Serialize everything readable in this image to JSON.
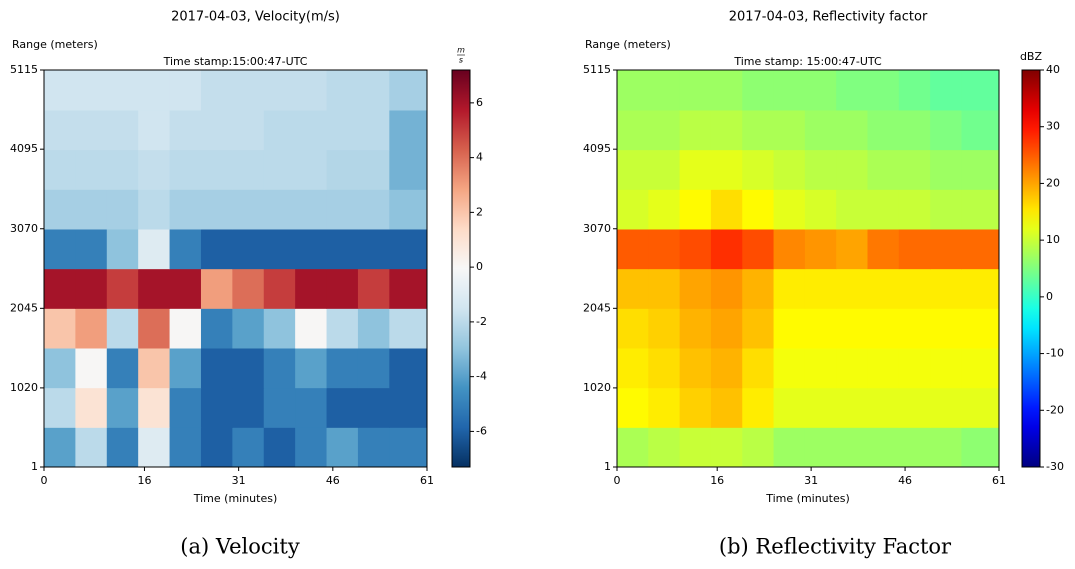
{
  "chart_data": [
    {
      "type": "heatmap",
      "title": "2017-04-03, Velocity(m/s)",
      "subtitle": "Time stamp:15:00:47-UTC",
      "y_label": "Range (meters)",
      "x_label": "Time (minutes)",
      "caption": "(a) Velocity",
      "colorbar_unit": {
        "numerator": "m",
        "denominator": "s"
      },
      "colormap": "RdBu_r",
      "xlim": [
        0,
        61
      ],
      "xticks": [
        0,
        16,
        31,
        46,
        61
      ],
      "ylim": [
        1,
        5115
      ],
      "yticks": [
        1,
        1020,
        2045,
        3070,
        4095,
        5115
      ],
      "clim": [
        -7.3,
        7.2
      ],
      "cticks": [
        -6,
        -4,
        -2,
        0,
        2,
        4,
        6
      ],
      "x_bins": [
        0,
        5,
        10,
        15,
        20,
        25,
        30,
        35,
        40,
        45,
        50,
        55,
        61
      ],
      "y_bins": [
        1,
        512,
        1023,
        1534,
        2045,
        2556,
        3067,
        3578,
        4089,
        4600,
        5115
      ],
      "z": [
        [
          -4,
          -2,
          -5,
          -1,
          -5,
          -6,
          -5,
          -6,
          -5,
          -4,
          -5,
          -5
        ],
        [
          -2,
          1,
          -4,
          1,
          -5,
          -6,
          -6,
          -5,
          -5,
          -6,
          -6,
          -6
        ],
        [
          -3,
          0,
          -5,
          2,
          -4,
          -6,
          -6,
          -5,
          -4,
          -5,
          -5,
          -6
        ],
        [
          2,
          3,
          -2,
          4,
          0,
          -5,
          -4,
          -3,
          0,
          -2,
          -3,
          -2
        ],
        [
          6,
          6,
          5,
          6,
          6,
          3,
          4,
          5,
          6,
          6,
          5,
          6
        ],
        [
          -5,
          -5,
          -3,
          -1,
          -5,
          -6,
          -6,
          -6,
          -6,
          -6,
          -6,
          -6
        ],
        [
          -2.5,
          -2.5,
          -2.5,
          -2,
          -2.5,
          -2.5,
          -2.5,
          -2.5,
          -2.5,
          -2.5,
          -2.5,
          -3
        ],
        [
          -2,
          -2,
          -2,
          -1.8,
          -2,
          -2,
          -2,
          -2,
          -2,
          -2.2,
          -2.2,
          -3.5
        ],
        [
          -1.8,
          -1.8,
          -1.8,
          -1.5,
          -1.8,
          -1.8,
          -1.8,
          -2,
          -2,
          -2,
          -2,
          -3.5
        ],
        [
          -1.5,
          -1.5,
          -1.5,
          -1.5,
          -1.5,
          -1.8,
          -1.8,
          -1.8,
          -1.8,
          -2,
          -2,
          -2.5
        ]
      ]
    },
    {
      "type": "heatmap",
      "title": "2017-04-03, Reflectivity factor",
      "subtitle": "Time stamp: 15:00:47-UTC",
      "y_label": "Range (meters)",
      "x_label": "Time (minutes)",
      "caption": "(b) Reflectivity Factor",
      "colorbar_label": "dBZ",
      "colormap": "jet",
      "xlim": [
        0,
        61
      ],
      "xticks": [
        0,
        16,
        31,
        46,
        61
      ],
      "ylim": [
        1,
        5115
      ],
      "yticks": [
        1,
        1020,
        2045,
        3070,
        4095,
        5115
      ],
      "clim": [
        -30,
        40
      ],
      "cticks": [
        -30,
        -20,
        -10,
        0,
        10,
        20,
        30,
        40
      ],
      "x_bins": [
        0,
        5,
        10,
        15,
        20,
        25,
        30,
        35,
        40,
        45,
        50,
        55,
        61
      ],
      "y_bins": [
        1,
        512,
        1023,
        1534,
        2045,
        2556,
        3067,
        3578,
        4089,
        4600,
        5115
      ],
      "z": [
        [
          8,
          9,
          10,
          10,
          9,
          7,
          7,
          7,
          7,
          7,
          7,
          6
        ],
        [
          14,
          15,
          17,
          18,
          15,
          12,
          12,
          12,
          12,
          12,
          12,
          12
        ],
        [
          15,
          16,
          18,
          19,
          16,
          13,
          13,
          13,
          13,
          13,
          13,
          13
        ],
        [
          16,
          17,
          19,
          20,
          18,
          14,
          14,
          14,
          14,
          14,
          14,
          14
        ],
        [
          18,
          18,
          20,
          21,
          19,
          15,
          15,
          15,
          15,
          15,
          15,
          15
        ],
        [
          25,
          25,
          26,
          28,
          26,
          22,
          21,
          20,
          23,
          24,
          24,
          24
        ],
        [
          11,
          12,
          14,
          16,
          14,
          12,
          11,
          10,
          10,
          10,
          9,
          9
        ],
        [
          10,
          10,
          12,
          12,
          11,
          10,
          9,
          9,
          8,
          8,
          7,
          7
        ],
        [
          8,
          8,
          9,
          9,
          8,
          8,
          7,
          7,
          6,
          6,
          5,
          4
        ],
        [
          7,
          7,
          7,
          7,
          6,
          6,
          6,
          5,
          5,
          4,
          3,
          3
        ]
      ]
    }
  ]
}
